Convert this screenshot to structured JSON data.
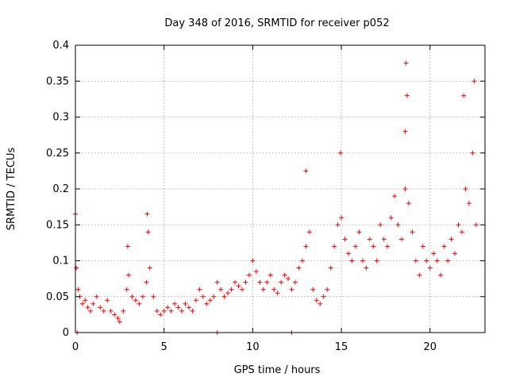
{
  "chart_data": {
    "type": "scatter",
    "title": "Day 348 of 2016, SRMTID for receiver p052",
    "xlabel": "GPS time / hours",
    "ylabel": "SRMTID / TECUs",
    "xlim": [
      0,
      23.1
    ],
    "ylim": [
      0,
      0.4
    ],
    "grid": true,
    "marker": "+",
    "color": "#ff0000",
    "xticks": [
      0,
      5,
      10,
      15,
      20
    ],
    "xtick_labels": [
      "0",
      "5",
      "10",
      "15",
      "20"
    ],
    "yticks": [
      0,
      0.05,
      0.1,
      0.15,
      0.2,
      0.25,
      0.3,
      0.35,
      0.4
    ],
    "ytick_labels": [
      "0",
      "0.05",
      "0.1",
      "0.15",
      "0.2",
      "0.25",
      "0.3",
      "0.35",
      "0.4"
    ],
    "series": [
      {
        "name": "SRMTID p052",
        "x": [
          0.0,
          0.15,
          0.25,
          0.4,
          0.55,
          0.7,
          0.85,
          1.0,
          1.2,
          1.4,
          1.6,
          1.8,
          2.0,
          2.2,
          2.4,
          2.5,
          2.7,
          2.9,
          3.0,
          3.2,
          3.4,
          3.6,
          3.8,
          4.0,
          4.1,
          4.2,
          4.4,
          4.6,
          4.8,
          5.0,
          5.2,
          5.4,
          5.6,
          5.8,
          6.0,
          6.2,
          6.4,
          6.6,
          6.8,
          7.0,
          7.2,
          7.4,
          7.6,
          7.8,
          8.0,
          8.2,
          8.4,
          8.6,
          8.8,
          9.0,
          9.2,
          9.4,
          9.6,
          9.8,
          10.0,
          10.2,
          10.4,
          10.6,
          10.8,
          11.0,
          11.2,
          11.4,
          11.6,
          11.8,
          12.0,
          12.2,
          12.4,
          12.6,
          12.8,
          13.0,
          13.2,
          13.4,
          13.6,
          13.8,
          14.0,
          14.2,
          14.4,
          14.6,
          14.8,
          15.0,
          15.2,
          15.4,
          15.6,
          15.8,
          16.0,
          16.2,
          16.4,
          16.6,
          16.8,
          17.0,
          17.2,
          17.4,
          17.6,
          17.8,
          18.0,
          18.2,
          18.4,
          18.6,
          18.8,
          19.0,
          19.2,
          19.4,
          19.6,
          19.8,
          20.0,
          20.2,
          20.4,
          20.6,
          20.8,
          21.0,
          21.2,
          21.4,
          21.6,
          21.8,
          22.0,
          22.2,
          22.4,
          22.6,
          18.65,
          18.7,
          18.6,
          21.9,
          22.5,
          4.05,
          2.95,
          13.0,
          14.95,
          0.05,
          8.0,
          12.2,
          0.1
        ],
        "y": [
          0.165,
          0.06,
          0.05,
          0.04,
          0.045,
          0.035,
          0.03,
          0.04,
          0.05,
          0.035,
          0.03,
          0.045,
          0.03,
          0.025,
          0.02,
          0.015,
          0.03,
          0.06,
          0.08,
          0.05,
          0.045,
          0.04,
          0.05,
          0.07,
          0.14,
          0.09,
          0.05,
          0.03,
          0.025,
          0.03,
          0.035,
          0.03,
          0.04,
          0.035,
          0.03,
          0.04,
          0.035,
          0.03,
          0.045,
          0.06,
          0.05,
          0.04,
          0.045,
          0.05,
          0.07,
          0.06,
          0.05,
          0.055,
          0.06,
          0.07,
          0.065,
          0.06,
          0.07,
          0.08,
          0.1,
          0.085,
          0.07,
          0.06,
          0.07,
          0.08,
          0.06,
          0.055,
          0.07,
          0.08,
          0.075,
          0.06,
          0.07,
          0.09,
          0.1,
          0.12,
          0.14,
          0.06,
          0.045,
          0.04,
          0.05,
          0.06,
          0.09,
          0.12,
          0.15,
          0.16,
          0.13,
          0.11,
          0.1,
          0.12,
          0.14,
          0.1,
          0.09,
          0.13,
          0.12,
          0.1,
          0.15,
          0.13,
          0.12,
          0.16,
          0.19,
          0.15,
          0.13,
          0.2,
          0.18,
          0.14,
          0.1,
          0.08,
          0.12,
          0.1,
          0.09,
          0.11,
          0.1,
          0.08,
          0.12,
          0.1,
          0.13,
          0.11,
          0.15,
          0.14,
          0.2,
          0.18,
          0.25,
          0.15,
          0.375,
          0.33,
          0.28,
          0.33,
          0.35,
          0.165,
          0.12,
          0.225,
          0.25,
          0.09,
          0.0,
          0.0,
          0.0
        ]
      }
    ]
  }
}
